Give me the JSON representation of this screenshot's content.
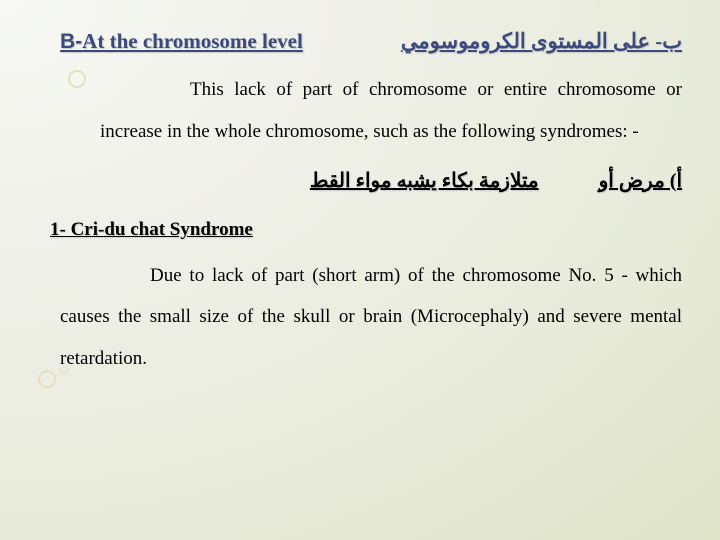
{
  "header": {
    "en_b": "B-",
    "en_rest": "At the chromosome level",
    "ar": "ب- على المستوى الكروموسومي"
  },
  "para1": "This lack of part of chromosome or entire chromosome or increase in the whole chromosome, such as the following syndromes: -",
  "ar_line": {
    "part1": "أ‌) مرض أو",
    "part2": "متلازمة بكاء يشبه مواء القط"
  },
  "sub_title": "1- Cri-du chat Syndrome",
  "para2": "Due to lack of part (short arm) of the chromosome No. 5 - which causes the small size of the skull or brain (Microcephaly) and severe mental retardation.",
  "colors": {
    "title_color": "#3b4a7a",
    "text_color": "#000000",
    "shadow_color": "#c8c8c8"
  },
  "fonts": {
    "title_family": "Times New Roman",
    "title_b_family": "Arial",
    "body_family": "Times New Roman",
    "title_size_pt": 16,
    "body_size_pt": 14
  }
}
